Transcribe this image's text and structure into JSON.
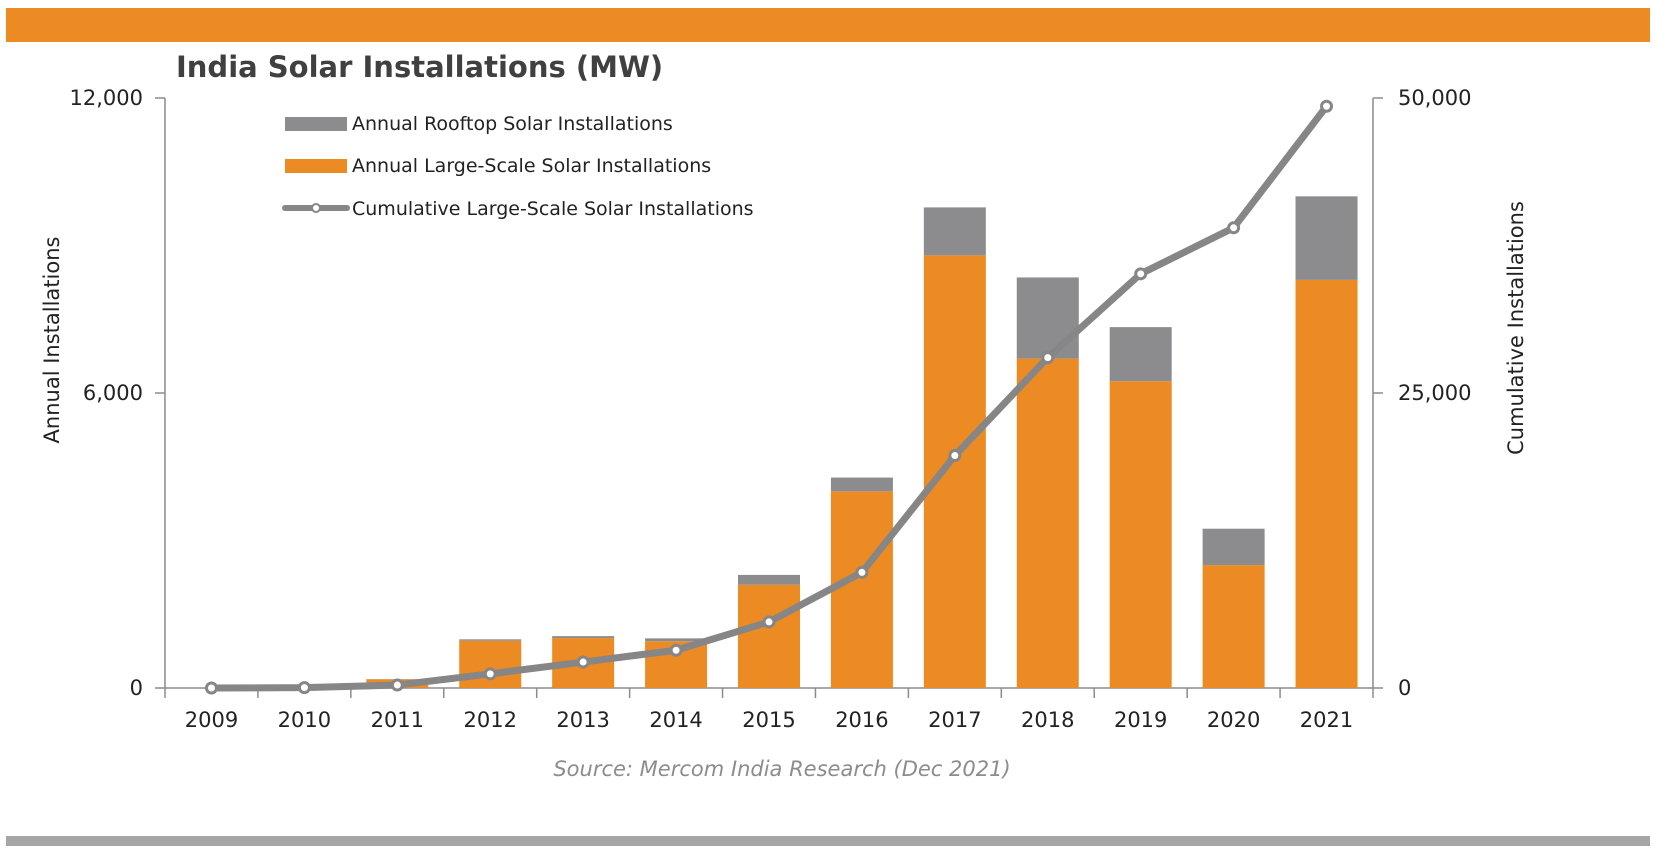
{
  "colors": {
    "top_band": "#ec8b24",
    "bottom_band": "#a6a6a6",
    "large_scale": "#ec8b24",
    "rooftop": "#8c8c8e",
    "cumulative_line": "#868686"
  },
  "chart_data": {
    "type": "bar",
    "stacked": true,
    "title": "India Solar Installations (MW)",
    "ylabel": "Annual Installations",
    "y2label": "Cumulative Installations",
    "ylim": [
      0,
      12000
    ],
    "y2lim": [
      0,
      50000
    ],
    "yticks": [
      "0",
      "6,000",
      "12,000"
    ],
    "yticks_values": [
      0,
      6000,
      12000
    ],
    "y2ticks": [
      "0",
      "25,000",
      "50,000"
    ],
    "y2ticks_values": [
      0,
      25000,
      50000
    ],
    "categories": [
      "2009",
      "2010",
      "2011",
      "2012",
      "2013",
      "2014",
      "2015",
      "2016",
      "2017",
      "2018",
      "2019",
      "2020",
      "2021"
    ],
    "series": [
      {
        "name": "Annual Large-Scale Solar Installations",
        "kind": "bar",
        "axis": "left",
        "values": [
          0,
          0,
          175,
          960,
          1015,
          950,
          2100,
          4000,
          8800,
          6700,
          6240,
          2500,
          8300
        ]
      },
      {
        "name": "Annual Rooftop Solar Installations",
        "kind": "bar",
        "axis": "left",
        "values": [
          0,
          0,
          5,
          30,
          40,
          60,
          200,
          280,
          975,
          1650,
          1100,
          740,
          1700
        ]
      },
      {
        "name": "Cumulative Large-Scale Solar Installations",
        "kind": "line",
        "axis": "right",
        "values": [
          0,
          30,
          250,
          1200,
          2200,
          3200,
          5600,
          9800,
          19700,
          28000,
          35100,
          39000,
          49300
        ]
      }
    ],
    "legend": {
      "position": "top-left",
      "entries": [
        "Annual Rooftop Solar Installations",
        "Annual Large-Scale Solar Installations",
        "Cumulative Large-Scale Solar Installations"
      ]
    },
    "source": "Source: Mercom India Research (Dec 2021)",
    "grid": false
  }
}
